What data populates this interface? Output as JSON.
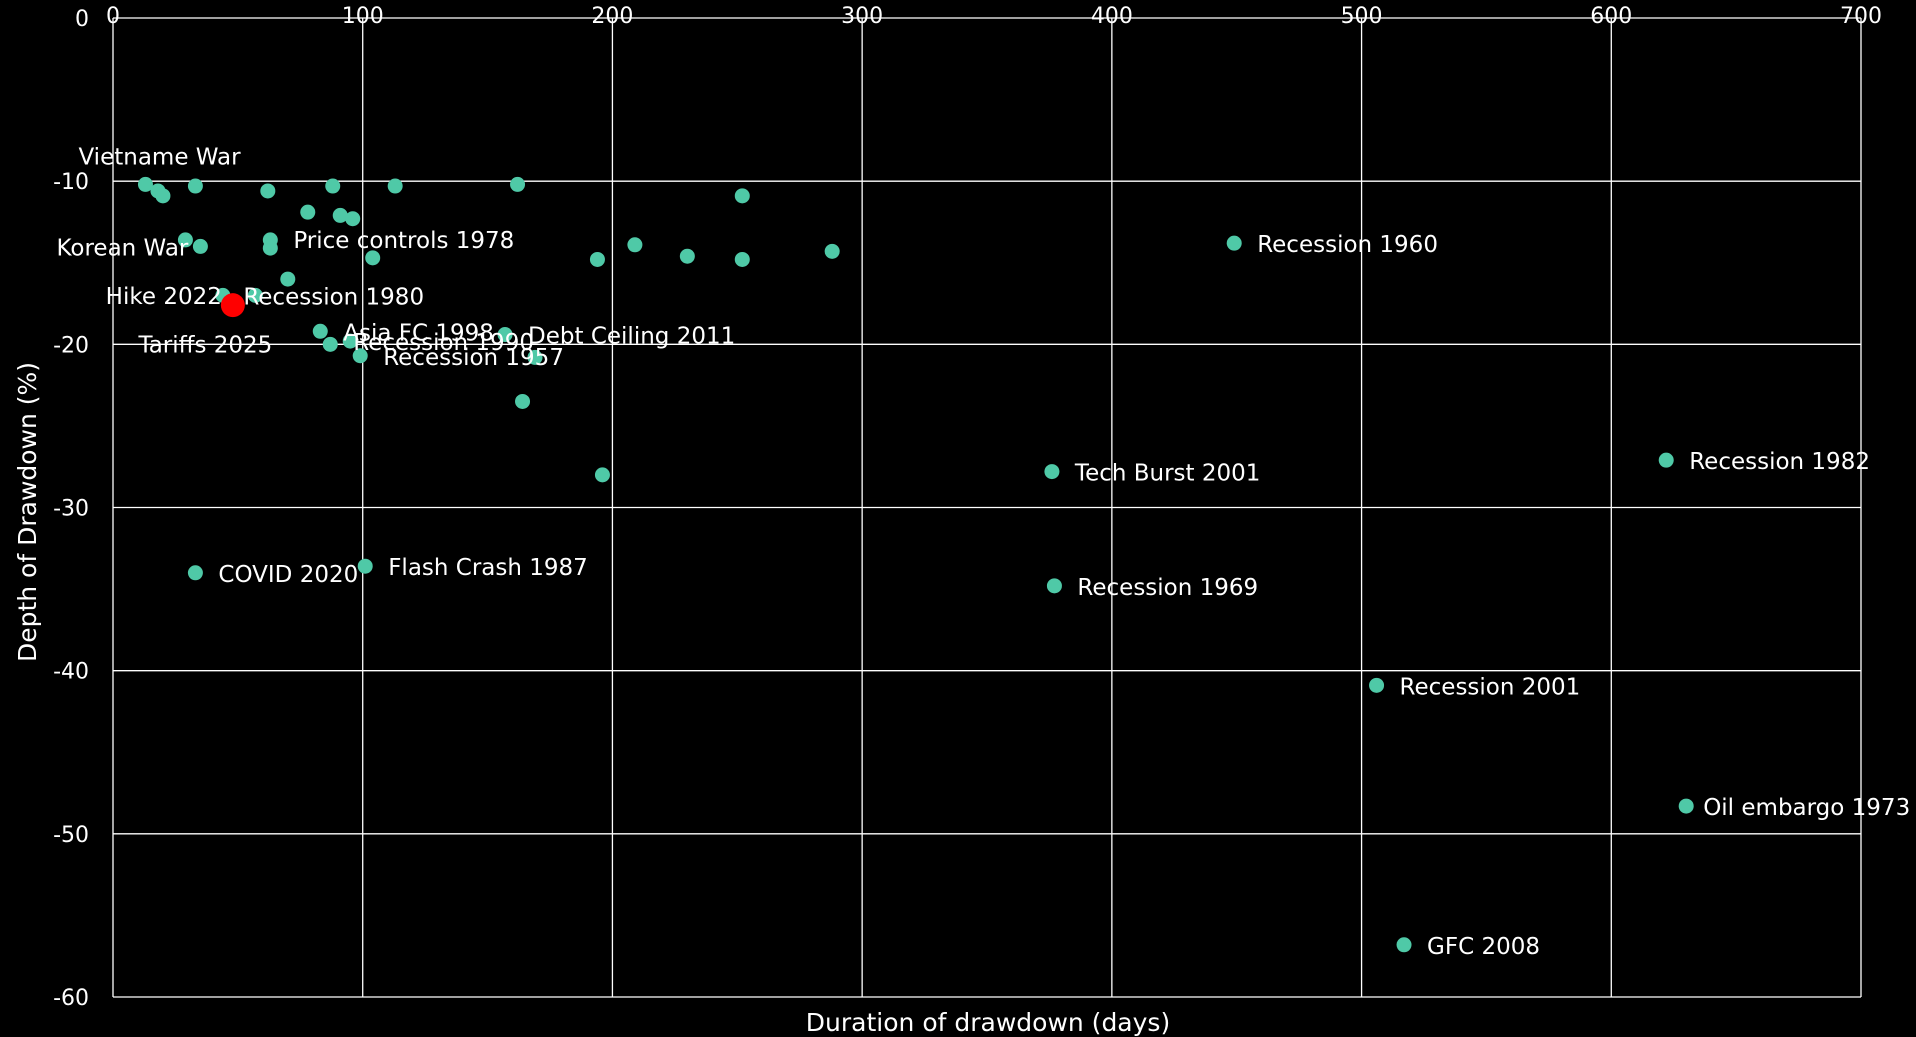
{
  "chart_data": {
    "type": "scatter",
    "xlabel": "Duration of drawdown (days)",
    "ylabel": "Depth of Drawdown (%)",
    "xlim": [
      0,
      700
    ],
    "ylim": [
      -60,
      0
    ],
    "x_ticks": [
      0,
      100,
      200,
      300,
      400,
      500,
      600,
      700
    ],
    "y_ticks": [
      0,
      -10,
      -20,
      -30,
      -40,
      -50,
      -60
    ],
    "x_tick_labels": [
      "0",
      "100",
      "200",
      "300",
      "400",
      "500",
      "600",
      "700"
    ],
    "y_tick_labels": [
      "0",
      "-10",
      "-20",
      "-30",
      "-40",
      "-50",
      "-60"
    ],
    "grid": true,
    "colors": {
      "background": "#000000",
      "point": "#4fc9a7",
      "highlight": "#ff0000",
      "grid": "#ffffff",
      "text": "#ffffff"
    },
    "points": [
      {
        "x": 13,
        "y": -10.2,
        "label": "Vietname War"
      },
      {
        "x": 18,
        "y": -10.6,
        "label": ""
      },
      {
        "x": 20,
        "y": -10.9,
        "label": ""
      },
      {
        "x": 33,
        "y": -10.3,
        "label": ""
      },
      {
        "x": 62,
        "y": -10.6,
        "label": ""
      },
      {
        "x": 88,
        "y": -10.3,
        "label": ""
      },
      {
        "x": 113,
        "y": -10.3,
        "label": ""
      },
      {
        "x": 162,
        "y": -10.2,
        "label": ""
      },
      {
        "x": 252,
        "y": -10.9,
        "label": ""
      },
      {
        "x": 29,
        "y": -13.6,
        "label": ""
      },
      {
        "x": 35,
        "y": -14.0,
        "label": "Korean War"
      },
      {
        "x": 63,
        "y": -13.6,
        "label": "Price controls 1978"
      },
      {
        "x": 63,
        "y": -14.1,
        "label": ""
      },
      {
        "x": 78,
        "y": -11.9,
        "label": ""
      },
      {
        "x": 91,
        "y": -12.1,
        "label": ""
      },
      {
        "x": 96,
        "y": -12.3,
        "label": ""
      },
      {
        "x": 104,
        "y": -14.7,
        "label": ""
      },
      {
        "x": 70,
        "y": -16.0,
        "label": ""
      },
      {
        "x": 194,
        "y": -14.8,
        "label": ""
      },
      {
        "x": 209,
        "y": -13.9,
        "label": ""
      },
      {
        "x": 230,
        "y": -14.6,
        "label": ""
      },
      {
        "x": 252,
        "y": -14.8,
        "label": ""
      },
      {
        "x": 288,
        "y": -14.3,
        "label": ""
      },
      {
        "x": 449,
        "y": -13.8,
        "label": "Recession 1960"
      },
      {
        "x": 44,
        "y": -17.0,
        "label": ""
      },
      {
        "x": 57,
        "y": -17.0,
        "label": "Recession 1980"
      },
      {
        "x": 83,
        "y": -19.2,
        "label": "Asia FC 1998"
      },
      {
        "x": 87,
        "y": -20.0,
        "label": ""
      },
      {
        "x": 95,
        "y": -19.8,
        "label": "Recession 1990"
      },
      {
        "x": 99,
        "y": -20.7,
        "label": "Recession 1957"
      },
      {
        "x": 157,
        "y": -19.4,
        "label": "Debt Ceiling 2011"
      },
      {
        "x": 169,
        "y": -20.8,
        "label": ""
      },
      {
        "x": 164,
        "y": -23.5,
        "label": ""
      },
      {
        "x": 196,
        "y": -28.0,
        "label": ""
      },
      {
        "x": 376,
        "y": -27.8,
        "label": "Tech Burst 2001"
      },
      {
        "x": 622,
        "y": -27.1,
        "label": "Recession 1982"
      },
      {
        "x": 33,
        "y": -34.0,
        "label": "COVID 2020"
      },
      {
        "x": 101,
        "y": -33.6,
        "label": "Flash Crash 1987"
      },
      {
        "x": 377,
        "y": -34.8,
        "label": "Recession 1969"
      },
      {
        "x": 506,
        "y": -40.9,
        "label": "Recession 2001"
      },
      {
        "x": 630,
        "y": -48.3,
        "label": "Oil embargo 1973"
      },
      {
        "x": 517,
        "y": -56.8,
        "label": "GFC 2008"
      }
    ],
    "highlight_points": [
      {
        "x": 48,
        "y": -17.6,
        "label": "Hike 2022"
      }
    ],
    "extra_labels": [
      {
        "text": "Tariffs 2025",
        "x": 37,
        "y": -20.0
      }
    ]
  }
}
